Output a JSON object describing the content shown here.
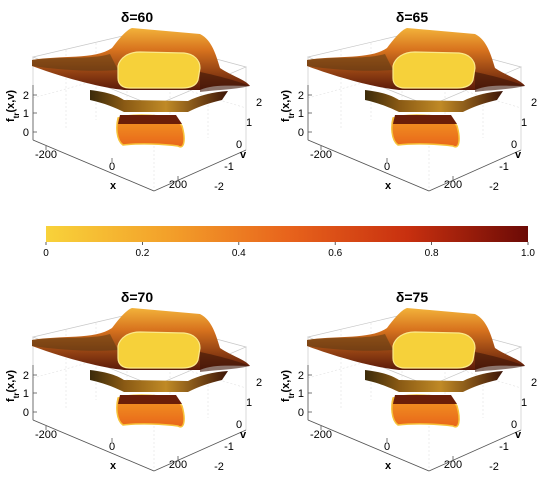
{
  "chart_data": [
    {
      "type": "surface3d",
      "title": "δ=60",
      "zlabel": "f",
      "zlabel_sub": "tr",
      "zlabel_args": "(x,v)",
      "xlabel": "x",
      "ylabel": "v",
      "x_ticks": [
        "-200",
        "0",
        "200"
      ],
      "y_ticks": [
        "2",
        "1",
        "0",
        "-1",
        "-2"
      ],
      "z_ticks": [
        "2",
        "1",
        "0"
      ]
    },
    {
      "type": "surface3d",
      "title": "δ=65",
      "zlabel": "f",
      "zlabel_sub": "tr",
      "zlabel_args": "(x,v)",
      "xlabel": "x",
      "ylabel": "v",
      "x_ticks": [
        "-200",
        "0",
        "200"
      ],
      "y_ticks": [
        "2",
        "1",
        "0",
        "-1",
        "-2"
      ],
      "z_ticks": [
        "2",
        "1",
        "0"
      ]
    },
    {
      "type": "surface3d",
      "title": "δ=70",
      "zlabel": "f",
      "zlabel_sub": "tr",
      "zlabel_args": "(x,v)",
      "xlabel": "x",
      "ylabel": "v",
      "x_ticks": [
        "-200",
        "0",
        "200"
      ],
      "y_ticks": [
        "2",
        "1",
        "0",
        "-1",
        "-2"
      ],
      "z_ticks": [
        "2",
        "1",
        "0"
      ]
    },
    {
      "type": "surface3d",
      "title": "δ=75",
      "zlabel": "f",
      "zlabel_sub": "tr",
      "zlabel_args": "(x,v)",
      "xlabel": "x",
      "ylabel": "v",
      "x_ticks": [
        "-200",
        "0",
        "200"
      ],
      "y_ticks": [
        "2",
        "1",
        "0",
        "-1",
        "-2"
      ],
      "z_ticks": [
        "2",
        "1",
        "0"
      ]
    }
  ],
  "colorbar": {
    "ticks": [
      "0",
      "0.2",
      "0.4",
      "0.6",
      "0.8",
      "1.0"
    ],
    "range": [
      0,
      1
    ],
    "colors": [
      "#f8d23a",
      "#f3a12a",
      "#e8641c",
      "#c8300f",
      "#6b0a06"
    ]
  }
}
